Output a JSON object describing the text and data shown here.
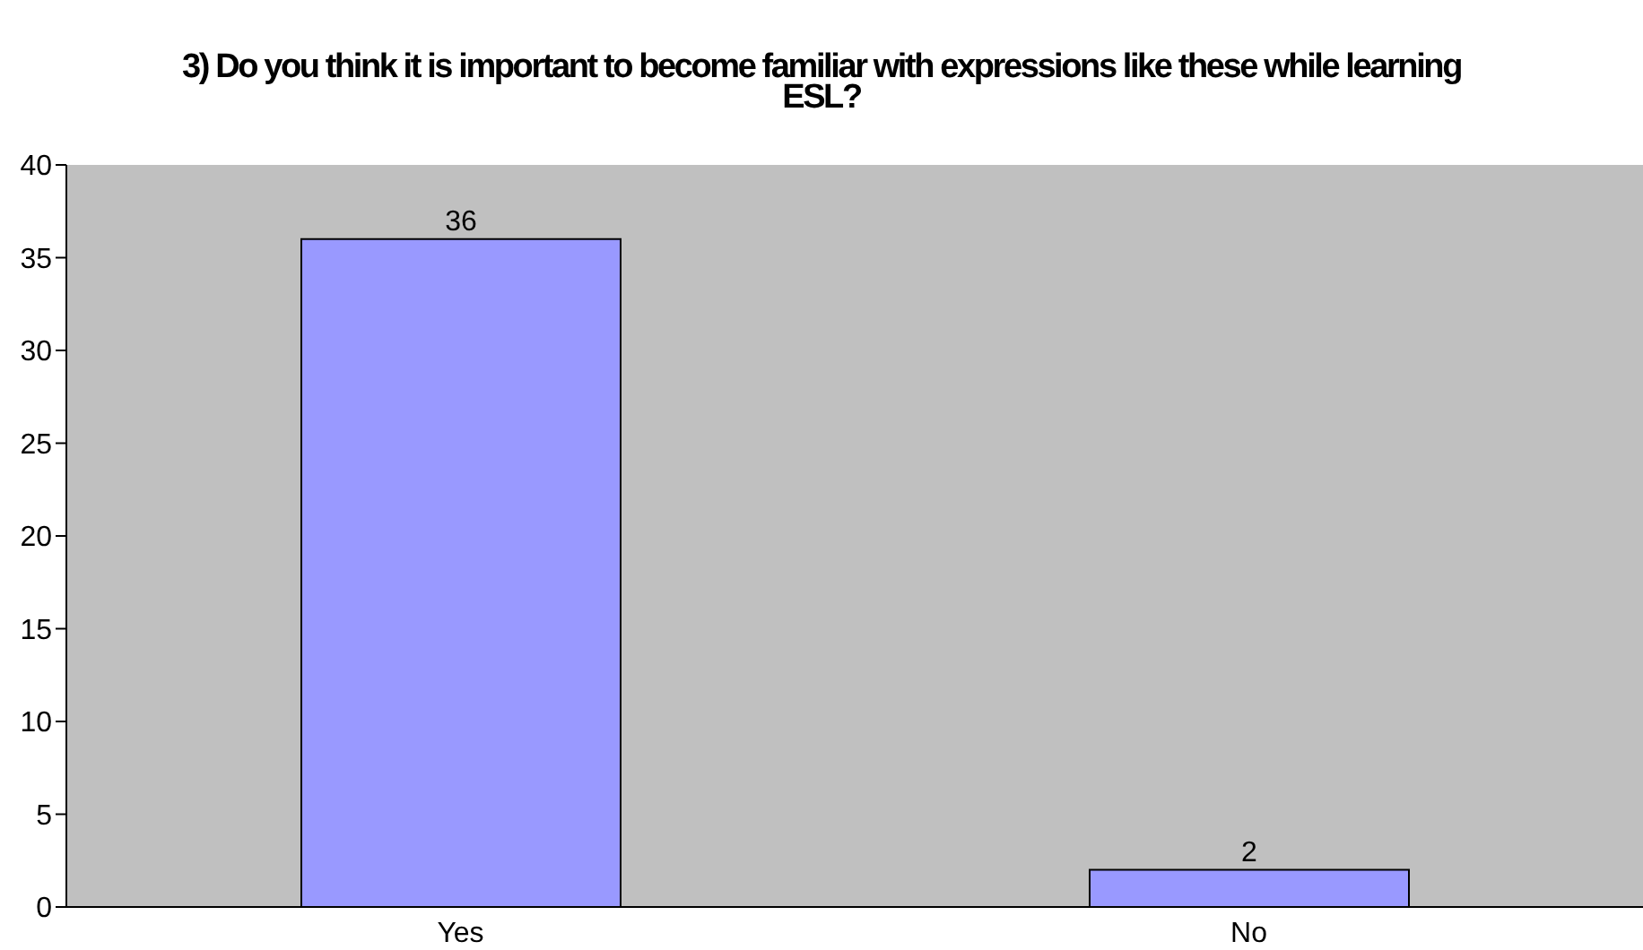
{
  "chart_data": {
    "type": "bar",
    "title": "3) Do you think it is important to become familiar with expressions like these while learning ESL?",
    "categories": [
      "Yes",
      "No"
    ],
    "values": [
      36,
      2
    ],
    "color": "#9999ff",
    "ylim": [
      0,
      40
    ],
    "yticks": [
      0,
      5,
      10,
      15,
      20,
      25,
      30,
      35,
      40
    ],
    "data_labels": true
  }
}
